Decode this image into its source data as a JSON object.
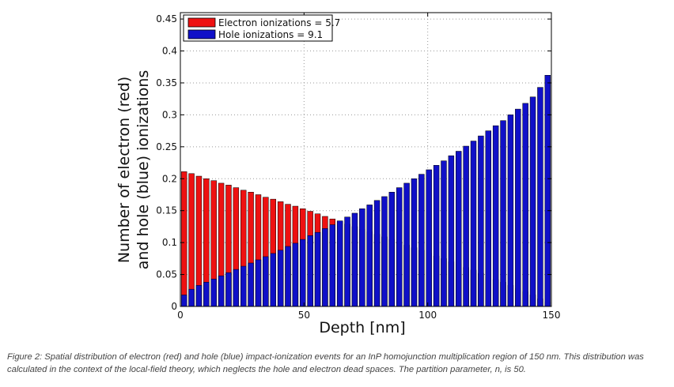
{
  "chart_data": {
    "type": "bar",
    "title": "",
    "xlabel": "Depth [nm]",
    "ylabel_lines": [
      "Number of electron (red)",
      "and hole (blue) ionizations"
    ],
    "xlim": [
      0,
      150
    ],
    "ylim": [
      0,
      0.46
    ],
    "xticks": [
      0,
      50,
      100,
      150
    ],
    "yticks": [
      0,
      0.05,
      0.1,
      0.15,
      0.2,
      0.25,
      0.3,
      0.35,
      0.4,
      0.45
    ],
    "xtick_labels": [
      "0",
      "50",
      "100",
      "150"
    ],
    "ytick_labels": [
      "0",
      "0.05",
      "0.1",
      "0.15",
      "0.2",
      "0.25",
      "0.3",
      "0.35",
      "0.4",
      "0.45"
    ],
    "grid": true,
    "legend_position": "top-left",
    "x": [
      1.5,
      4.5,
      7.5,
      10.5,
      13.5,
      16.5,
      19.5,
      22.5,
      25.5,
      28.5,
      31.5,
      34.5,
      37.5,
      40.5,
      43.5,
      46.5,
      49.5,
      52.5,
      55.5,
      58.5,
      61.5,
      64.5,
      67.5,
      70.5,
      73.5,
      76.5,
      79.5,
      82.5,
      85.5,
      88.5,
      91.5,
      94.5,
      97.5,
      100.5,
      103.5,
      106.5,
      109.5,
      112.5,
      115.5,
      118.5,
      121.5,
      124.5,
      127.5,
      130.5,
      133.5,
      136.5,
      139.5,
      142.5,
      145.5,
      148.5
    ],
    "series": [
      {
        "name": "Electron ionizations = 5.7",
        "color": "#ee1111",
        "values": [
          0.211,
          0.208,
          0.204,
          0.2,
          0.197,
          0.193,
          0.19,
          0.186,
          0.182,
          0.179,
          0.175,
          0.171,
          0.168,
          0.164,
          0.16,
          0.157,
          0.153,
          0.149,
          0.145,
          0.141,
          0.137,
          0.133,
          0.129,
          0.125,
          0.121,
          0.117,
          0.113,
          0.109,
          0.105,
          0.101,
          0.096,
          0.092,
          0.088,
          0.083,
          0.079,
          0.075,
          0.07,
          0.066,
          0.061,
          0.057,
          0.052,
          0.047,
          0.042,
          0.038,
          0.033,
          0.028,
          0.023,
          0.018,
          0.012,
          0.007
        ]
      },
      {
        "name": "Hole ionizations = 9.1",
        "color": "#1010c8",
        "values": [
          0.018,
          0.027,
          0.033,
          0.038,
          0.043,
          0.048,
          0.053,
          0.058,
          0.063,
          0.068,
          0.073,
          0.078,
          0.083,
          0.088,
          0.094,
          0.099,
          0.105,
          0.111,
          0.116,
          0.122,
          0.128,
          0.134,
          0.14,
          0.146,
          0.153,
          0.159,
          0.166,
          0.172,
          0.179,
          0.186,
          0.193,
          0.2,
          0.207,
          0.214,
          0.221,
          0.228,
          0.236,
          0.243,
          0.251,
          0.259,
          0.267,
          0.275,
          0.283,
          0.291,
          0.3,
          0.309,
          0.318,
          0.328,
          0.343,
          0.362
        ]
      }
    ]
  },
  "caption": "Figure 2: Spatial distribution of electron (red) and hole (blue) impact-ionization events for an InP homojunction multiplication region of 150 nm. This distribution was calculated in the context of the local-field theory, which neglects the hole and electron dead spaces. The partition parameter, n, is 50."
}
